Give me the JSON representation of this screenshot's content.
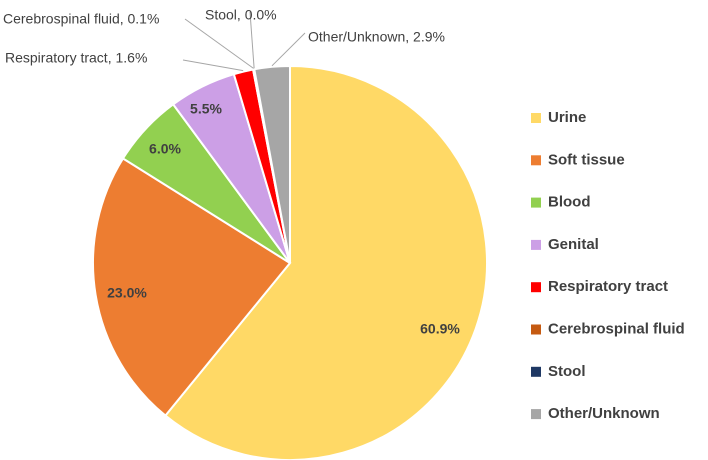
{
  "chart_data": {
    "type": "pie",
    "title": "",
    "categories": [
      "Urine",
      "Soft tissue",
      "Blood",
      "Genital",
      "Respiratory tract",
      "Cerebrospinal fluid",
      "Stool",
      "Other/Unknown"
    ],
    "values": [
      60.9,
      23.0,
      6.0,
      5.5,
      1.6,
      0.1,
      0.0,
      2.9
    ],
    "colors": [
      "#FFD966",
      "#ED7D31",
      "#92D050",
      "#CC9FE6",
      "#FF0000",
      "#C55A11",
      "#1F3864",
      "#A6A6A6"
    ],
    "slice_labels": [
      "60.9%",
      "23.0%",
      "6.0%",
      "5.5%",
      "Respiratory tract, 1.6%",
      "Cerebrospinal fluid, 0.1%",
      "Stool, 0.0%",
      "Other/Unknown, 2.9%"
    ],
    "legend_position": "right"
  }
}
